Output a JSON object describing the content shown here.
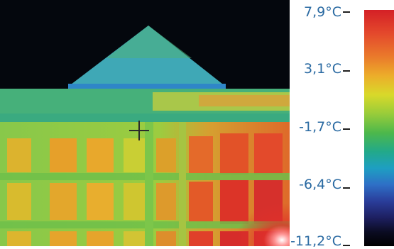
{
  "scale": {
    "ticks": [
      "7,9°C",
      "3,1°C",
      "-1,7°C",
      "-6,4°C",
      "-11,2°C"
    ]
  },
  "colors": {
    "sky": "#04070d",
    "roof_cool": "#3aa4b8",
    "facade_mid": "#7ec84a",
    "warm_window": "#e8a22a",
    "hot_window": "#d8342a",
    "label_text": "#2a6aa2"
  }
}
